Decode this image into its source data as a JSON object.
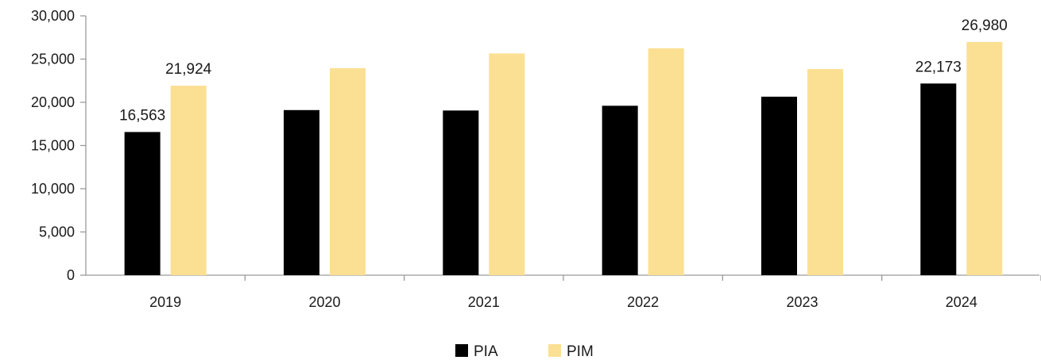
{
  "chart_data": {
    "type": "bar",
    "categories": [
      "2019",
      "2020",
      "2021",
      "2022",
      "2023",
      "2024"
    ],
    "series": [
      {
        "name": "PIA",
        "color": "#000000",
        "values": [
          16563,
          19100,
          19050,
          19600,
          20650,
          22173
        ],
        "data_labels": [
          "16,563",
          "",
          "",
          "",
          "",
          "22,173"
        ]
      },
      {
        "name": "PIM",
        "color": "#fbe093",
        "values": [
          21924,
          23950,
          25650,
          26250,
          23850,
          26980
        ],
        "data_labels": [
          "21,924",
          "",
          "",
          "",
          "",
          "26,980"
        ]
      }
    ],
    "ylim": [
      0,
      30000
    ],
    "yticks": [
      0,
      5000,
      10000,
      15000,
      20000,
      25000,
      30000
    ],
    "ytick_labels": [
      "0",
      "5,000",
      "10,000",
      "15,000",
      "20,000",
      "25,000",
      "30,000"
    ],
    "title": "",
    "xlabel": "",
    "ylabel": "",
    "grid": false,
    "legend": "bottom-center"
  }
}
